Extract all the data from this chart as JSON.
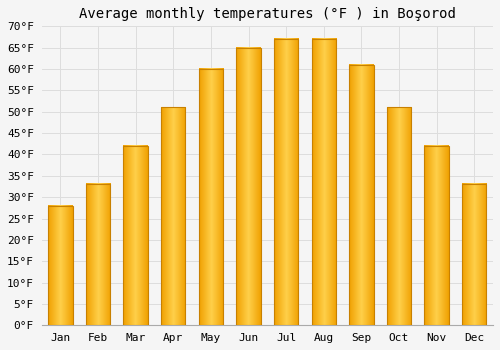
{
  "title": "Average monthly temperatures (°F ) in Boşorod",
  "months": [
    "Jan",
    "Feb",
    "Mar",
    "Apr",
    "May",
    "Jun",
    "Jul",
    "Aug",
    "Sep",
    "Oct",
    "Nov",
    "Dec"
  ],
  "values": [
    28,
    33,
    42,
    51,
    60,
    65,
    67,
    67,
    61,
    51,
    42,
    33
  ],
  "bar_color_center": "#FFD04A",
  "bar_color_edge": "#F0A000",
  "background_color": "#f5f5f5",
  "grid_color": "#dddddd",
  "ylim": [
    0,
    70
  ],
  "yticks": [
    0,
    5,
    10,
    15,
    20,
    25,
    30,
    35,
    40,
    45,
    50,
    55,
    60,
    65,
    70
  ],
  "title_fontsize": 10,
  "tick_fontsize": 8,
  "font_family": "monospace",
  "bar_width": 0.65
}
